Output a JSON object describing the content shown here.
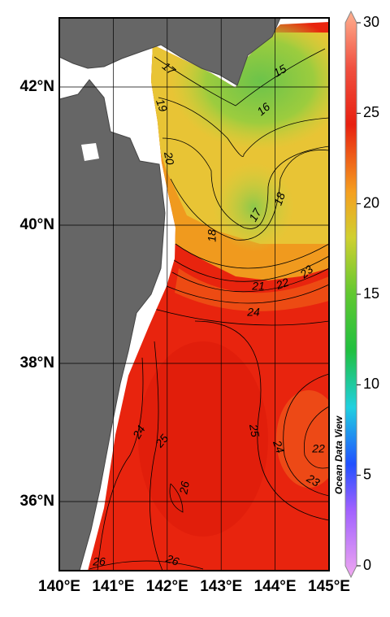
{
  "map": {
    "xlim": [
      140,
      145
    ],
    "ylim": [
      35,
      43
    ],
    "xticks": [
      {
        "value": 140,
        "label": "140°E"
      },
      {
        "value": 141,
        "label": "141°E"
      },
      {
        "value": 142,
        "label": "142°E"
      },
      {
        "value": 143,
        "label": "143°E"
      },
      {
        "value": 144,
        "label": "144°E"
      },
      {
        "value": 145,
        "label": "145°E"
      }
    ],
    "yticks": [
      {
        "value": 36,
        "label": "36°N"
      },
      {
        "value": 38,
        "label": "38°N"
      },
      {
        "value": 40,
        "label": "40°N"
      },
      {
        "value": 42,
        "label": "42°N"
      }
    ],
    "grid": true,
    "colorbar": {
      "lim": [
        0,
        30
      ],
      "ticks": [
        0,
        5,
        10,
        15,
        20,
        25,
        30
      ]
    },
    "contour_labels": [
      17,
      15,
      19,
      16,
      20,
      18,
      17,
      18,
      21,
      22,
      23,
      24,
      24,
      25,
      25,
      24,
      26,
      22,
      23,
      26,
      26
    ],
    "credit": "Ocean Data View"
  }
}
